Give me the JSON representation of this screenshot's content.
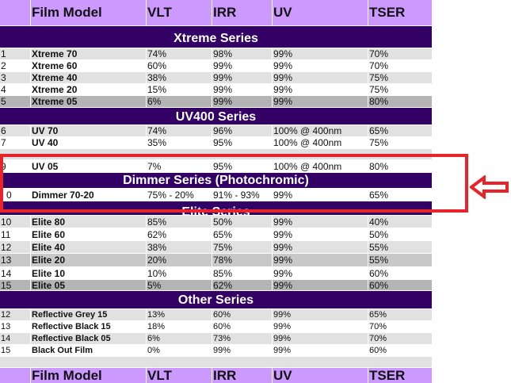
{
  "columns": [
    "",
    "Film Model",
    "VLT",
    "IRR",
    "UV",
    "TSER"
  ],
  "header_top": {
    "labels": [
      "",
      "Film Model",
      "VLT",
      "IRR",
      "UV",
      "TSER"
    ]
  },
  "header_bottom": {
    "labels": [
      "",
      "Film Model",
      "VLT",
      "IRR",
      "UV",
      "TSER"
    ]
  },
  "sections": [
    {
      "title": "Xtreme Series",
      "rows": [
        {
          "cells": [
            "1",
            "Xtreme 70",
            "74%",
            "98%",
            "99%",
            "70%"
          ]
        },
        {
          "cells": [
            "2",
            "Xtreme 60",
            "60%",
            "99%",
            "99%",
            "70%"
          ]
        },
        {
          "cells": [
            "3",
            "Xtreme 40",
            "38%",
            "99%",
            "99%",
            "75%"
          ]
        },
        {
          "cells": [
            "4",
            "Xtreme 20",
            "15%",
            "99%",
            "99%",
            "75%"
          ]
        },
        {
          "cells": [
            "5",
            "Xtreme 05",
            "6%",
            "99%",
            "99%",
            "80%"
          ]
        }
      ]
    },
    {
      "title": "UV400 Series",
      "rows": [
        {
          "cells": [
            "6",
            "UV 70",
            "74%",
            "96%",
            "100% @ 400nm",
            "65%"
          ]
        },
        {
          "cells": [
            "7",
            "UV 40",
            "35%",
            "95%",
            "100% @ 400nm",
            "75%"
          ]
        },
        {
          "cells": [
            "9",
            "UV 05",
            "7%",
            "95%",
            "100% @ 400nm",
            "80%"
          ]
        }
      ]
    },
    {
      "title": "Dimmer Series (Photochromic)",
      "rows": [
        {
          "cells": [
            "0",
            "Dimmer 70-20",
            "75% - 20%",
            "91% - 93%",
            "99%",
            "65%"
          ]
        }
      ]
    },
    {
      "title": "Elite Series",
      "rows": [
        {
          "cells": [
            "10",
            "Elite 80",
            "85%",
            "50%",
            "99%",
            "40%"
          ]
        },
        {
          "cells": [
            "11",
            "Elite 60",
            "62%",
            "65%",
            "99%",
            "50%"
          ]
        },
        {
          "cells": [
            "12",
            "Elite 40",
            "38%",
            "75%",
            "99%",
            "55%"
          ]
        },
        {
          "cells": [
            "13",
            "Elite 20",
            "20%",
            "78%",
            "99%",
            "55%"
          ]
        },
        {
          "cells": [
            "14",
            "Elite 10",
            "10%",
            "85%",
            "99%",
            "60%"
          ]
        },
        {
          "cells": [
            "15",
            "Elite 05",
            "5%",
            "62%",
            "99%",
            "60%"
          ]
        }
      ]
    },
    {
      "title": "Other Series",
      "rows": [
        {
          "cells": [
            "12",
            "Reflective Grey 15",
            "13%",
            "60%",
            "99%",
            "65%"
          ]
        },
        {
          "cells": [
            "13",
            "Reflective Black 15",
            "18%",
            "60%",
            "99%",
            "70%"
          ]
        },
        {
          "cells": [
            "14",
            "Reflective Black 05",
            "6%",
            "73%",
            "99%",
            "70%"
          ]
        },
        {
          "cells": [
            "15",
            "Black Out Film",
            "0%",
            "99%",
            "99%",
            "60%"
          ]
        }
      ]
    }
  ],
  "annotation": {
    "box_color": "#e8232a",
    "arrow_icon": "left-arrow-icon"
  },
  "colors": {
    "header": "#cc99ff",
    "section": "#330066",
    "highlight": "#e8232a"
  }
}
